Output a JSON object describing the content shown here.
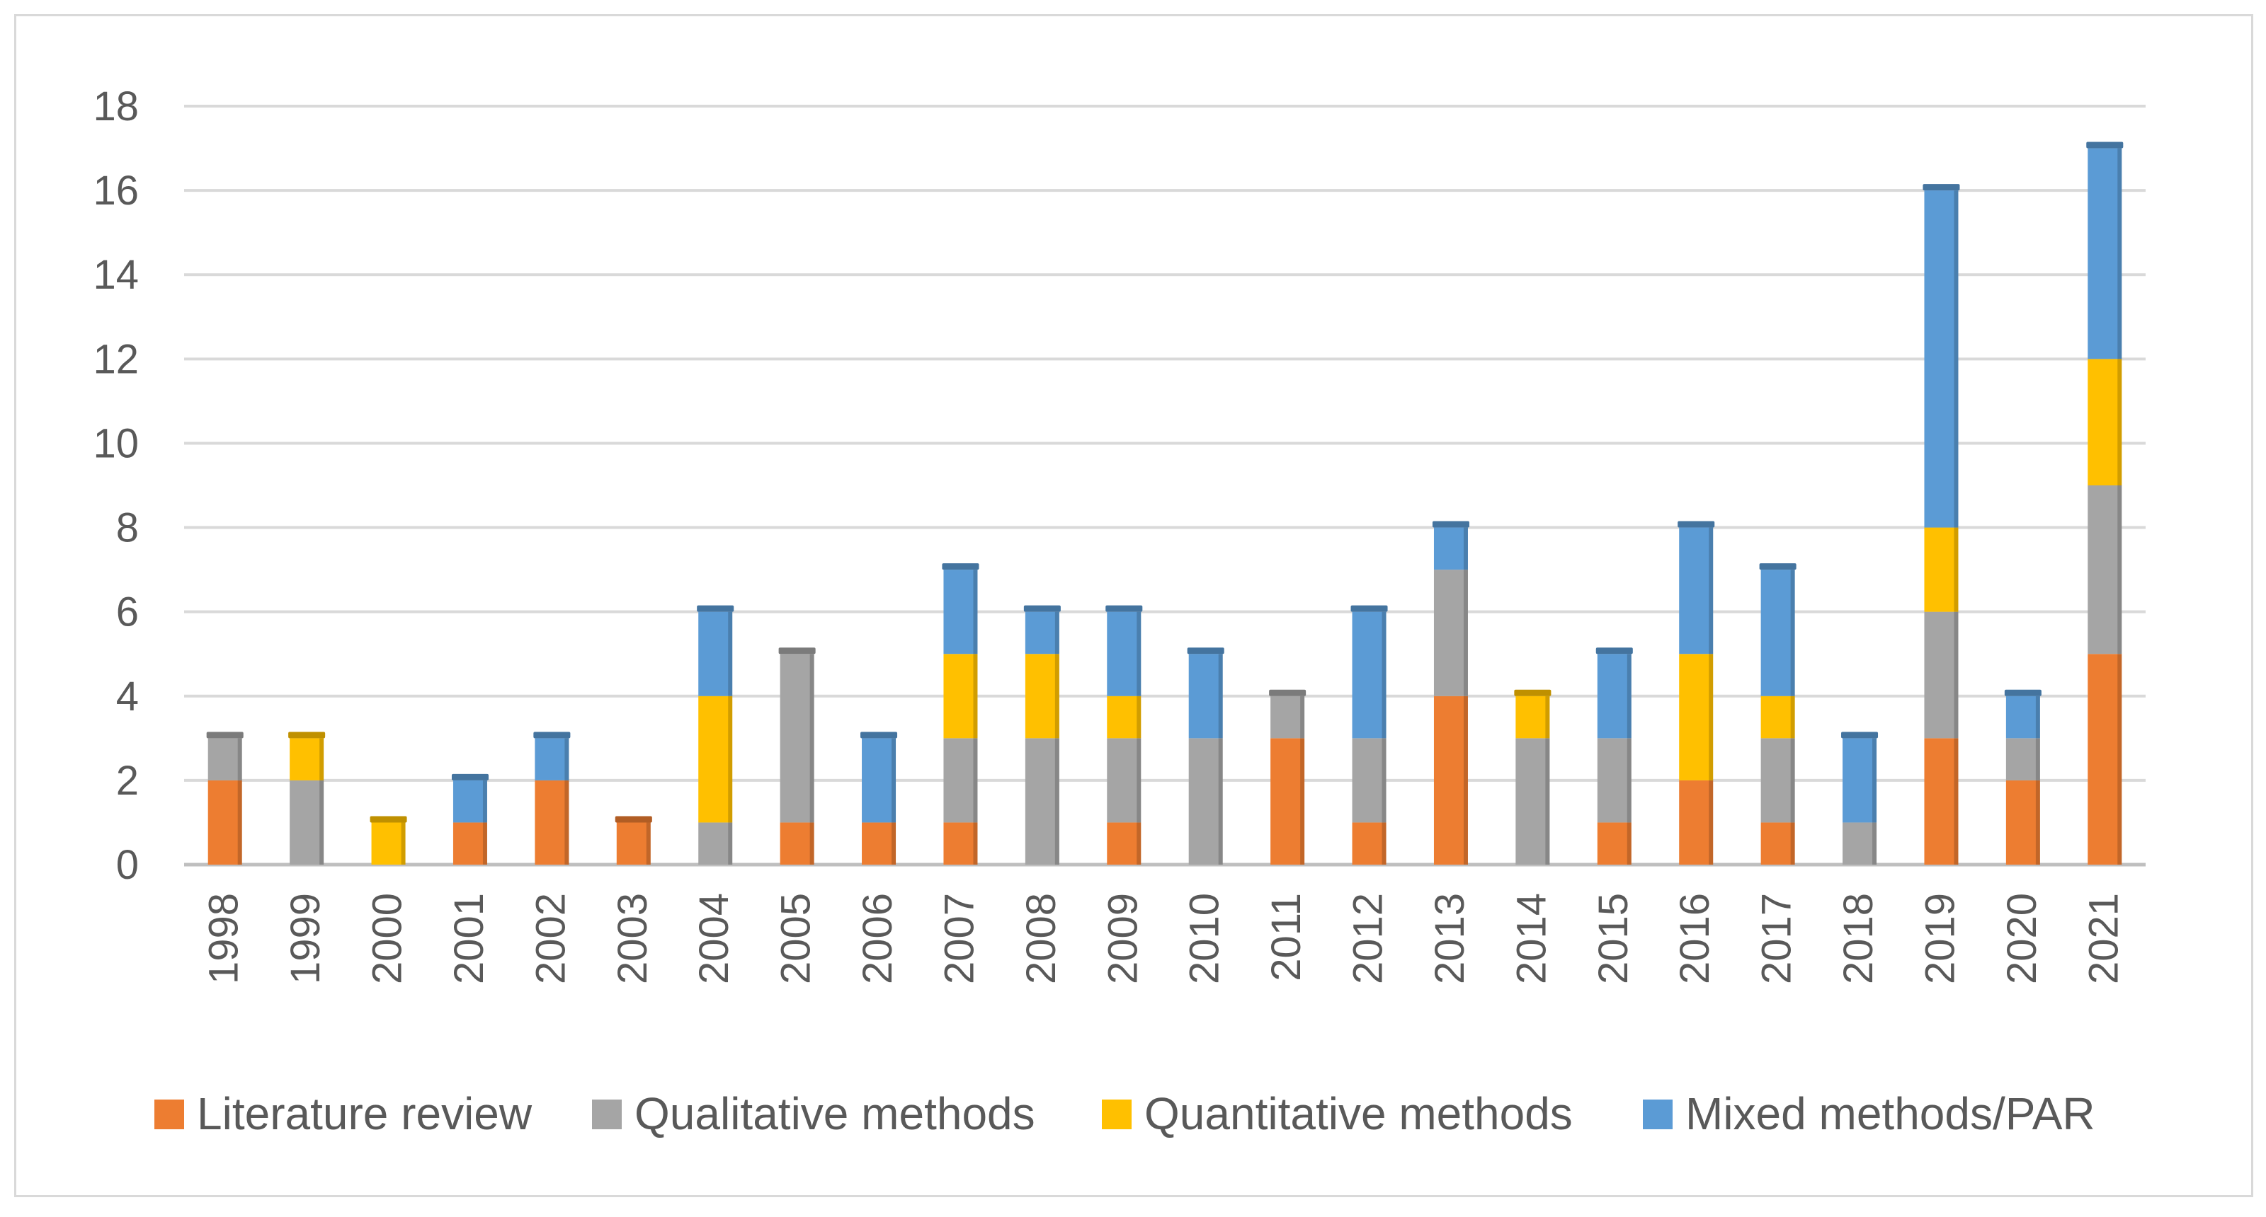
{
  "chart_data": {
    "type": "bar",
    "stacked": true,
    "categories": [
      "1998",
      "1999",
      "2000",
      "2001",
      "2002",
      "2003",
      "2004",
      "2005",
      "2006",
      "2007",
      "2008",
      "2009",
      "2010",
      "2011",
      "2012",
      "2013",
      "2014",
      "2015",
      "2016",
      "2017",
      "2018",
      "2019",
      "2020",
      "2021"
    ],
    "series": [
      {
        "name": "Literature review",
        "color": "#ed7d31",
        "values": [
          2,
          0,
          0,
          1,
          2,
          1,
          0,
          1,
          1,
          1,
          0,
          1,
          0,
          3,
          1,
          4,
          0,
          1,
          2,
          1,
          0,
          3,
          2,
          5
        ]
      },
      {
        "name": "Qualitative methods",
        "color": "#a5a5a5",
        "values": [
          1,
          2,
          0,
          0,
          0,
          0,
          1,
          4,
          0,
          2,
          3,
          2,
          3,
          1,
          2,
          3,
          3,
          2,
          0,
          2,
          1,
          3,
          1,
          4
        ]
      },
      {
        "name": "Quantitative methods",
        "color": "#ffc000",
        "values": [
          0,
          1,
          1,
          0,
          0,
          0,
          3,
          0,
          0,
          2,
          2,
          1,
          0,
          0,
          0,
          0,
          1,
          0,
          3,
          1,
          0,
          2,
          0,
          3
        ]
      },
      {
        "name": "Mixed methods/PAR",
        "color": "#5b9bd5",
        "values": [
          0,
          0,
          0,
          1,
          1,
          0,
          2,
          0,
          2,
          2,
          1,
          2,
          2,
          0,
          3,
          1,
          0,
          2,
          3,
          3,
          2,
          8,
          1,
          5
        ]
      }
    ],
    "ylim": [
      0,
      18
    ],
    "yticks": [
      0,
      2,
      4,
      6,
      8,
      10,
      12,
      14,
      16,
      18
    ],
    "grid": true,
    "legend_position": "bottom",
    "title": "",
    "xlabel": "",
    "ylabel": ""
  }
}
